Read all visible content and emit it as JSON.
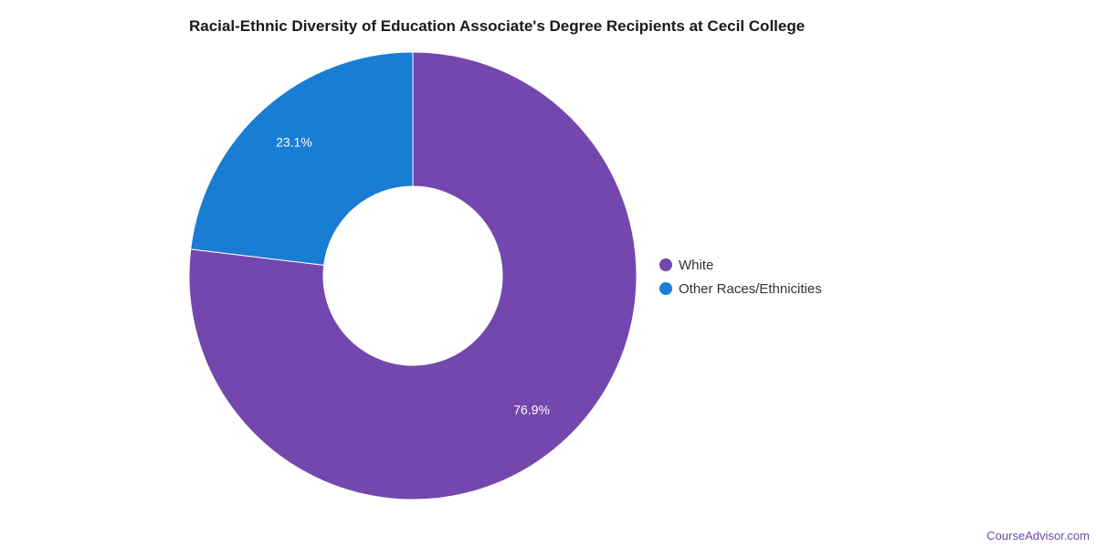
{
  "chart_data": {
    "type": "pie",
    "title": "Racial-Ethnic Diversity of Education Associate's Degree Recipients at Cecil College",
    "donut": true,
    "legend_position": "right",
    "slices": [
      {
        "label": "White",
        "value": 76.9,
        "value_label": "76.9%",
        "color": "#7447ae"
      },
      {
        "label": "Other Races/Ethnicities",
        "value": 23.1,
        "value_label": "23.1%",
        "color": "#1a7dd4"
      }
    ]
  },
  "source": "CourseAdvisor.com"
}
